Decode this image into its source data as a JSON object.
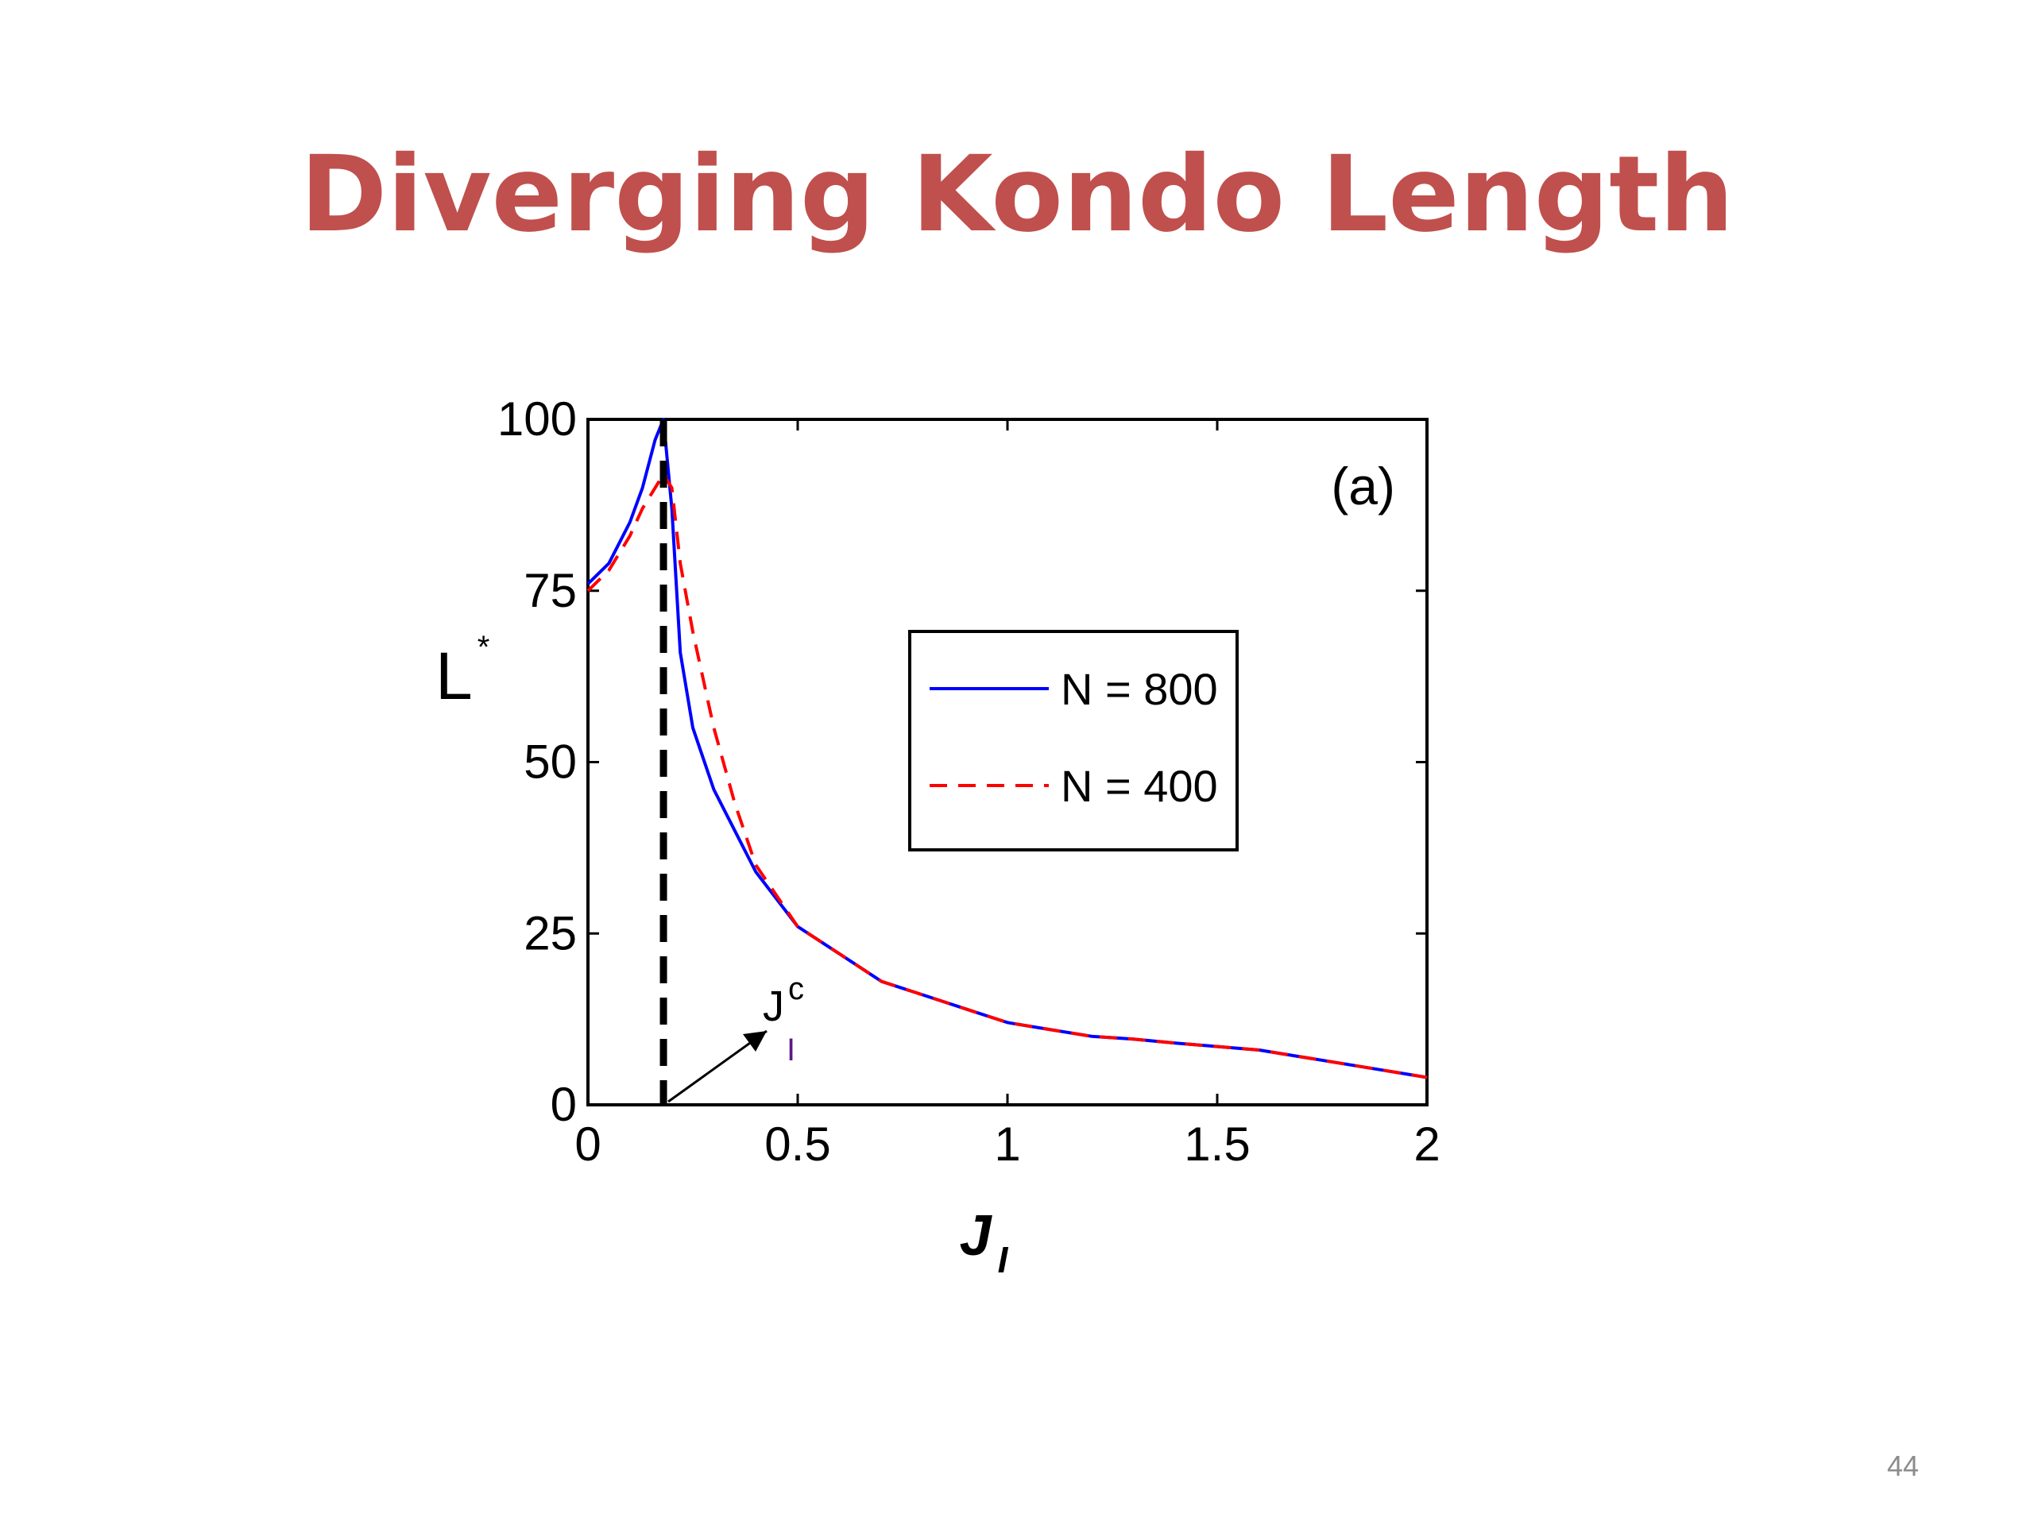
{
  "slide": {
    "title": "Diverging Kondo Length",
    "page_number": "44"
  },
  "colors": {
    "title": "#C0504D",
    "series_n800": "#0000FF",
    "series_n400": "#FF0000",
    "critical_line": "#000000",
    "axes": "#000000",
    "page_number": "#8c8c8c"
  },
  "chart_data": {
    "type": "line",
    "panel_label": "(a)",
    "xlabel": "J",
    "xlabel_subscript": "I",
    "ylabel": "L",
    "ylabel_superscript": "*",
    "xlim": [
      0,
      2
    ],
    "ylim": [
      0,
      100
    ],
    "xticks": [
      0,
      0.5,
      1,
      1.5,
      2
    ],
    "xtick_labels": [
      "0",
      "0.5",
      "1",
      "1.5",
      "2"
    ],
    "yticks": [
      0,
      25,
      50,
      75,
      100
    ],
    "ytick_labels": [
      "0",
      "25",
      "50",
      "75",
      "100"
    ],
    "grid": false,
    "legend_position": "center-right",
    "series": [
      {
        "name": "N = 800",
        "style": "solid",
        "color": "#0000FF",
        "x": [
          0.0,
          0.05,
          0.1,
          0.13,
          0.16,
          0.18,
          0.2,
          0.22,
          0.25,
          0.3,
          0.35,
          0.4,
          0.5,
          0.6,
          0.7,
          0.8,
          0.9,
          1.0,
          1.1,
          1.2,
          1.3,
          1.4,
          1.5,
          1.6,
          1.7,
          1.8,
          1.9,
          2.0
        ],
        "y": [
          76,
          79,
          85,
          90,
          97,
          100,
          87,
          66,
          55,
          46,
          40,
          34,
          26,
          22,
          18,
          16,
          14,
          12,
          11,
          10,
          9.6,
          9,
          8.5,
          8,
          7,
          6,
          5,
          4
        ]
      },
      {
        "name": "N = 400",
        "style": "dashed",
        "color": "#FF0000",
        "x": [
          0.0,
          0.05,
          0.1,
          0.13,
          0.16,
          0.18,
          0.2,
          0.22,
          0.25,
          0.3,
          0.35,
          0.4,
          0.5,
          0.6,
          0.7,
          0.8,
          0.9,
          1.0,
          1.1,
          1.2,
          1.3,
          1.4,
          1.5,
          1.6,
          1.7,
          1.8,
          1.9,
          2.0
        ],
        "y": [
          75,
          78,
          83,
          87,
          90,
          92,
          90,
          79,
          69,
          55,
          44,
          35,
          26,
          22,
          18,
          16,
          14,
          12,
          11,
          10,
          9.6,
          9,
          8.5,
          8,
          7,
          6,
          5,
          4
        ]
      }
    ],
    "critical_line": {
      "x": 0.18,
      "label": "J",
      "label_superscript": "c",
      "label_subscript": "I"
    }
  }
}
